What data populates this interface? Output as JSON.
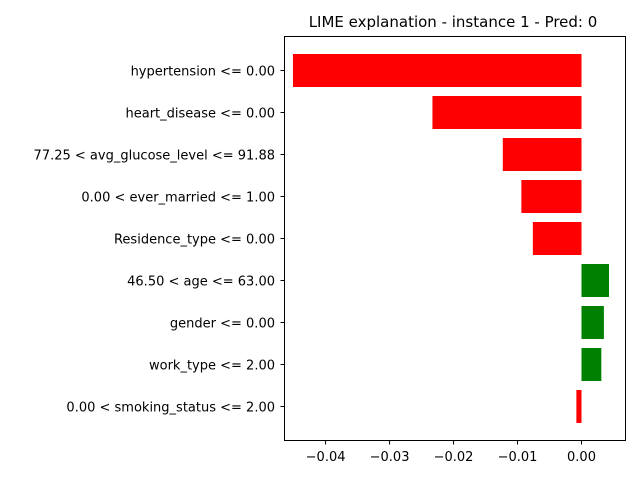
{
  "chart_data": {
    "type": "bar",
    "orientation": "horizontal",
    "title": "LIME explanation - instance 1 - Pred: 0",
    "xlabel": "",
    "ylabel": "",
    "categories": [
      "hypertension <= 0.00",
      "heart_disease <= 0.00",
      "77.25 < avg_glucose_level <= 91.88",
      "0.00 < ever_married <= 1.00",
      "Residence_type <= 0.00",
      "46.50 < age <= 63.00",
      "gender <= 0.00",
      "work_type <= 2.00",
      "0.00 < smoking_status <= 2.00"
    ],
    "values": [
      -0.0451,
      -0.0233,
      -0.0123,
      -0.0094,
      -0.0076,
      0.0043,
      0.0035,
      0.0031,
      -0.0008
    ],
    "xlim": [
      -0.0465,
      0.0068
    ],
    "xticks": [
      -0.04,
      -0.03,
      -0.02,
      -0.01,
      0.0
    ],
    "xtick_labels": [
      "−0.04",
      "−0.03",
      "−0.02",
      "−0.01",
      "0.00"
    ],
    "colors": {
      "negative": "#ff0000",
      "positive": "#008000"
    },
    "grid": false,
    "legend": "none"
  }
}
